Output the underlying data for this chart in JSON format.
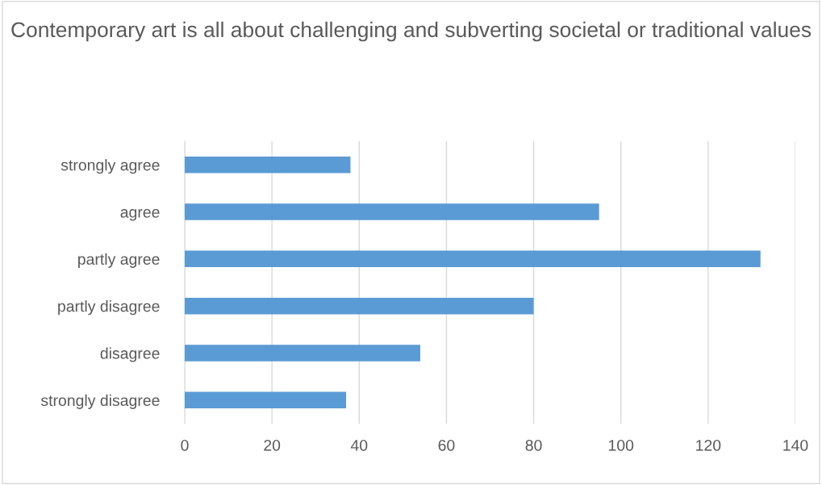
{
  "chart_data": {
    "type": "bar",
    "orientation": "horizontal",
    "title": "Contemporary art is all about challenging and subverting societal or traditional values",
    "categories": [
      "strongly agree",
      "agree",
      "partly agree",
      "partly disagree",
      "disagree",
      "strongly disagree"
    ],
    "values": [
      38,
      95,
      132,
      80,
      54,
      37
    ],
    "color": "#5b9bd5",
    "xlim": [
      0,
      140
    ],
    "xticks": [
      0,
      20,
      40,
      60,
      80,
      100,
      120,
      140
    ],
    "grid": "x"
  }
}
